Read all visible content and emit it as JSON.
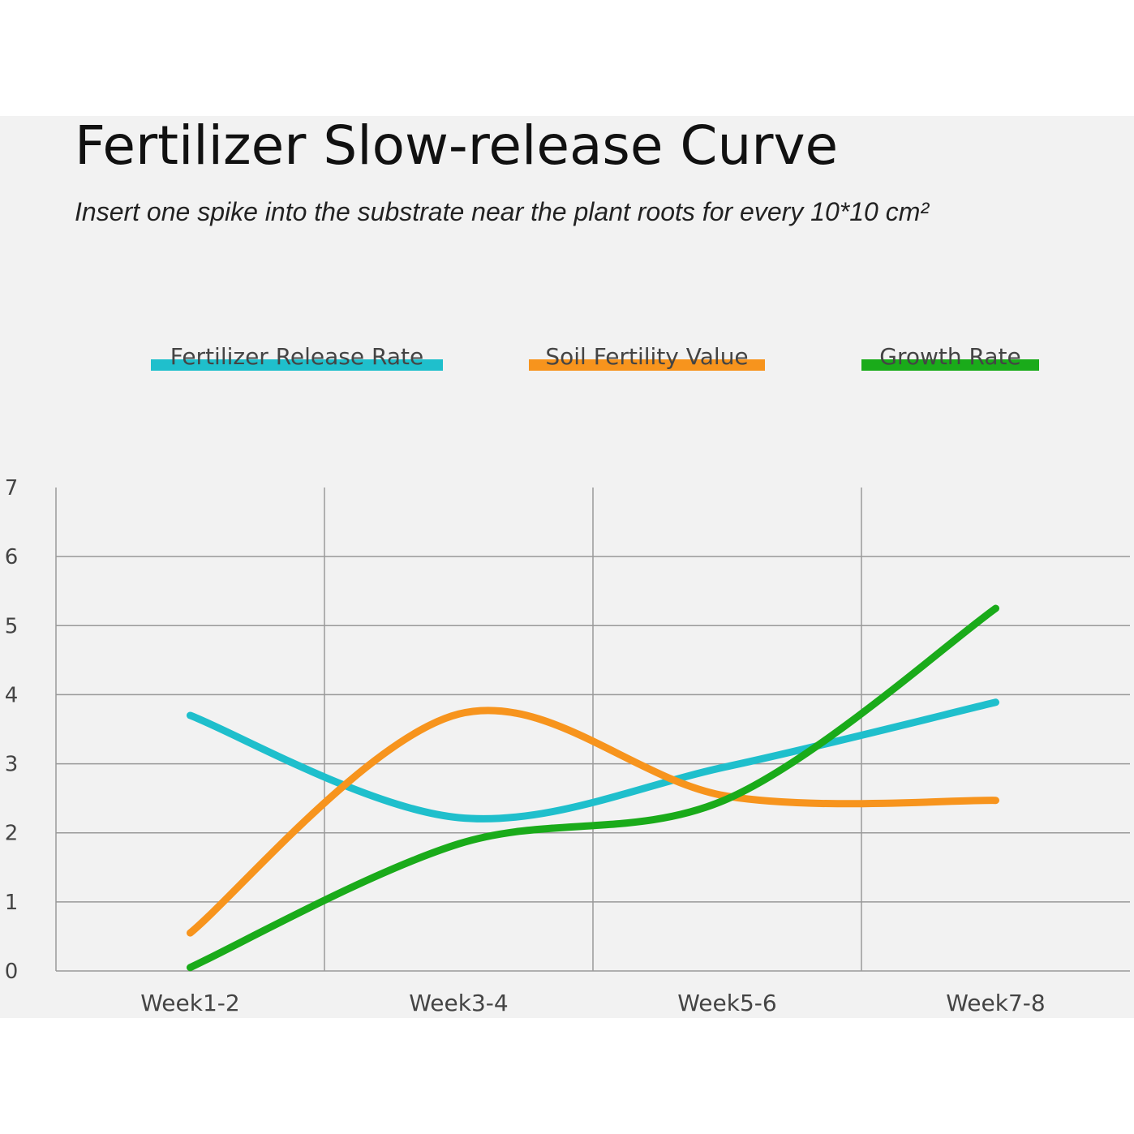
{
  "chart_data": {
    "type": "line",
    "title": "Fertilizer Slow-release Curve",
    "subtitle": "Insert one spike into the substrate near the plant roots for every 10*10 cm²",
    "categories": [
      "Week1-2",
      "Week3-4",
      "Week5-6",
      "Week7-8"
    ],
    "series": [
      {
        "name": "Fertilizer Release Rate",
        "color": "#1fbfcc",
        "values": [
          3.7,
          2.22,
          2.96,
          3.89
        ]
      },
      {
        "name": "Soil Fertility Value",
        "color": "#f7941d",
        "values": [
          0.55,
          3.72,
          2.53,
          2.47
        ]
      },
      {
        "name": "Growth Rate",
        "color": "#1aab1a",
        "values": [
          0.05,
          1.84,
          2.49,
          5.25
        ]
      }
    ],
    "ylim": [
      0,
      7
    ],
    "yticks": [
      0,
      1,
      2,
      3,
      4,
      5,
      6,
      7
    ],
    "grid": true,
    "smooth": true,
    "legend": "top"
  }
}
